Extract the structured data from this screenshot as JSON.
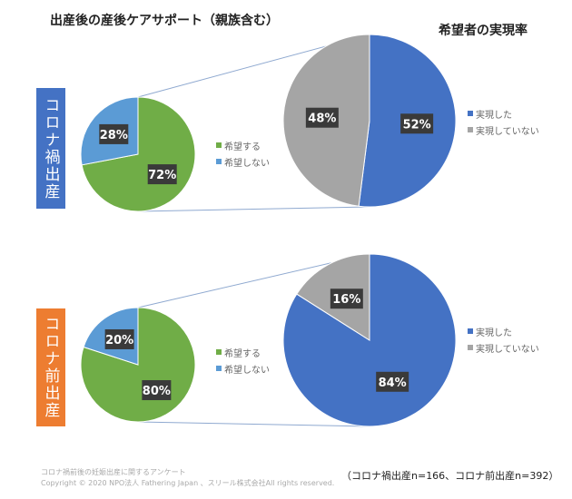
{
  "title": "出産後の産後ケアサポート（親族含む）",
  "subtitle": "希望者の実現率",
  "colors": {
    "want": "#70AD47",
    "not_want": "#5B9BD5",
    "realized": "#4472C4",
    "not_realized": "#A5A5A5",
    "covid_box": "#4472C4",
    "pre_box": "#ED7D31"
  },
  "chart_data": [
    {
      "type": "pie",
      "group": "コロナ禍出産",
      "labels": [
        "希望する",
        "希望しない"
      ],
      "values": [
        72,
        28
      ]
    },
    {
      "type": "pie",
      "group": "コロナ禍出産",
      "title": "希望者の実現率",
      "labels": [
        "実現した",
        "実現していない"
      ],
      "values": [
        52,
        48
      ]
    },
    {
      "type": "pie",
      "group": "コロナ前出産",
      "labels": [
        "希望する",
        "希望しない"
      ],
      "values": [
        80,
        20
      ]
    },
    {
      "type": "pie",
      "group": "コロナ前出産",
      "labels": [
        "実現した",
        "実現していない"
      ],
      "values": [
        84,
        16
      ]
    }
  ],
  "groups": [
    "コロナ禍出産",
    "コロナ前出産"
  ],
  "legend_small": [
    "希望する",
    "希望しない"
  ],
  "legend_large": [
    "実現した",
    "実現していない"
  ],
  "footer": {
    "line1": "コロナ禍前後の妊娠出産に関するアンケート",
    "line2": "Copyright © 2020 NPO法人 Fathering Japan 、スリール株式会社All rights reserved.",
    "note": "（コロナ禍出産n=166、コロナ前出産n=392）"
  }
}
